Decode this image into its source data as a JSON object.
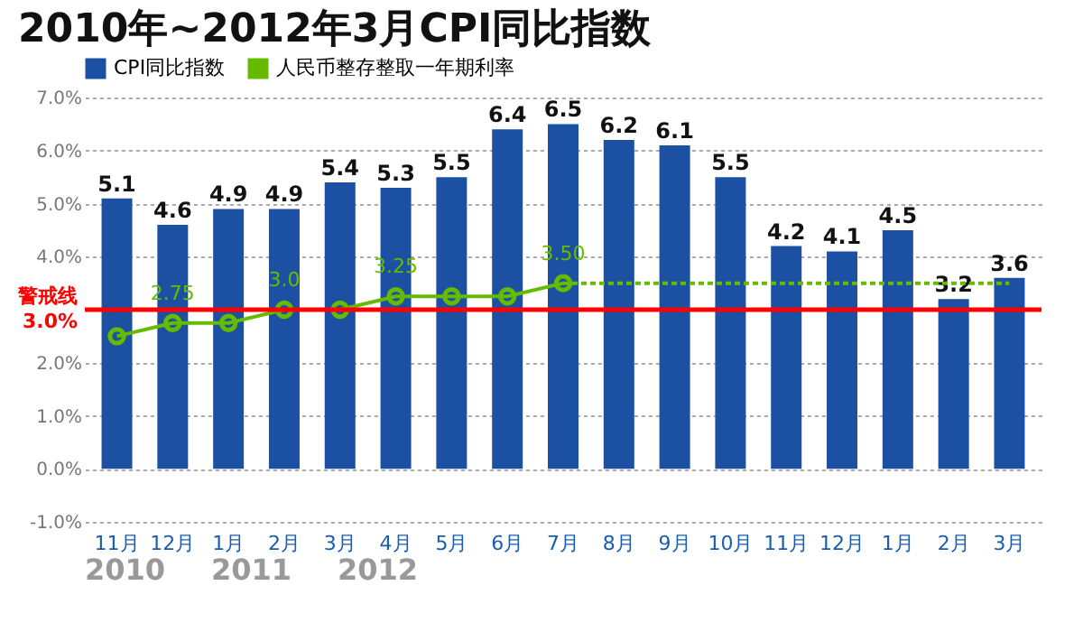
{
  "chart_data": {
    "type": "bar",
    "title": "2010年~2012年3月CPI同比指数",
    "categories": [
      "11月",
      "12月",
      "1月",
      "2月",
      "3月",
      "4月",
      "5月",
      "6月",
      "7月",
      "8月",
      "9月",
      "10月",
      "11月",
      "12月",
      "1月",
      "2月",
      "3月"
    ],
    "series": [
      {
        "name": "CPI同比指数",
        "color": "#1c50a3",
        "values": [
          5.1,
          4.6,
          4.9,
          4.9,
          5.4,
          5.3,
          5.5,
          6.4,
          6.5,
          6.2,
          6.1,
          5.5,
          4.2,
          4.1,
          4.5,
          3.2,
          3.6
        ],
        "data_labels": true
      },
      {
        "name": "人民币整存整取一年期利率",
        "type": "line",
        "color": "#66bb00",
        "marker": "circle",
        "line_style": "solid",
        "values": [
          2.5,
          2.75,
          2.75,
          3.0,
          3.0,
          3.25,
          3.25,
          3.25,
          3.5,
          null,
          null,
          null,
          null,
          null,
          null,
          null,
          null
        ],
        "value_labels": [
          null,
          "2.75",
          null,
          "3.0",
          null,
          "3.25",
          null,
          null,
          "3.50",
          null,
          null,
          null,
          null,
          null,
          null,
          null,
          null
        ]
      },
      {
        "type": "line",
        "color": "#66bb00",
        "line_style": "dotted",
        "values": [
          null,
          null,
          null,
          null,
          null,
          null,
          null,
          null,
          3.5,
          3.5,
          3.5,
          3.5,
          3.5,
          3.5,
          3.5,
          3.5,
          3.5
        ]
      }
    ],
    "ylim": [
      -1,
      7
    ],
    "yticks": [
      {
        "value": -1,
        "label": "-1.0%"
      },
      {
        "value": 0,
        "label": "0.0%"
      },
      {
        "value": 1,
        "label": "1.0%"
      },
      {
        "value": 2,
        "label": "2.0%"
      },
      {
        "value": 4,
        "label": "4.0%"
      },
      {
        "value": 5,
        "label": "5.0%"
      },
      {
        "value": 6,
        "label": "6.0%"
      },
      {
        "value": 7,
        "label": "7.0%"
      }
    ],
    "grid": "y",
    "legend": "top left",
    "ref_lines": [
      {
        "axis": "y",
        "value": 3,
        "label": "警戒线 3.0%",
        "color": "#ff0000"
      }
    ],
    "annotations": [
      "2010",
      "2011",
      "2012"
    ]
  }
}
